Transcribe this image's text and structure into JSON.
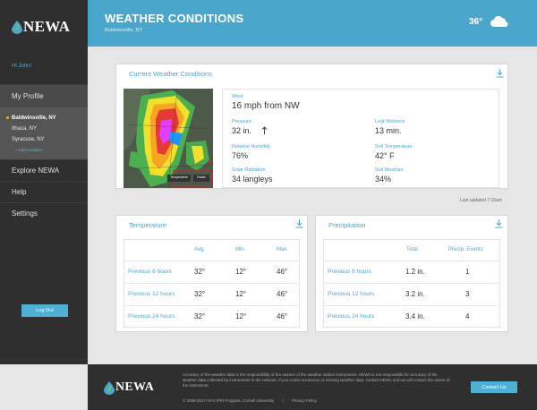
{
  "brand": {
    "logo_text": "NEWA"
  },
  "sidebar": {
    "greeting": "Hi John!",
    "my_profile": "My Profile",
    "locations": [
      {
        "label": "Baldwinsville, NY",
        "active": true
      },
      {
        "label": "Ithaca, NY",
        "active": false
      },
      {
        "label": "Syracuse, NY",
        "active": false
      }
    ],
    "add_location": "+ Add Location",
    "explore": "Explore NEWA",
    "help": "Help",
    "settings": "Settings",
    "logout": "Log Out"
  },
  "header": {
    "title": "WEATHER CONDITIONS",
    "subtitle": "Baldwinsville, NY",
    "temp": "36°",
    "weather_icon": "cloud-icon"
  },
  "current": {
    "title": "Current Weather Conditions",
    "radar_marker": "8",
    "radar_buttons": [
      "Temperature",
      "Radar"
    ],
    "wind_label": "Wind",
    "wind_value": "16 mph from NW",
    "pressure_label": "Pressure",
    "pressure_value": "32 in.",
    "pressure_trend_icon": "arrow-up-icon",
    "leaf_label": "Leaf Wetness",
    "leaf_value": "13 min.",
    "rh_label": "Relative Humidity",
    "rh_value": "76%",
    "soilt_label": "Soil Temperature",
    "soilt_value": "42° F",
    "solar_label": "Solar Radiation",
    "solar_value": "34 langleys",
    "soilm_label": "Soil Moisture",
    "soilm_value": "34%",
    "updated": "Last updated 7:15am"
  },
  "temperature": {
    "title": "Temperature",
    "headers": [
      "Avg.",
      "Min.",
      "Max."
    ],
    "rows": [
      {
        "label": "Previous 6 hours",
        "avg": "32°",
        "min": "12°",
        "max": "46°"
      },
      {
        "label": "Previous 12 hours",
        "avg": "32°",
        "min": "12°",
        "max": "46°"
      },
      {
        "label": "Previous 24 hours",
        "avg": "32°",
        "min": "12°",
        "max": "46°"
      }
    ]
  },
  "precipitation": {
    "title": "Precipitation",
    "headers": [
      "Total",
      "Precip. Events"
    ],
    "rows": [
      {
        "label": "Previous 6 hours",
        "total": "1.2 in.",
        "events": "1"
      },
      {
        "label": "Previous 12 hours",
        "total": "3.2 in.",
        "events": "3"
      },
      {
        "label": "Previous 24 hours",
        "total": "3.4 in.",
        "events": "4"
      }
    ]
  },
  "footer": {
    "disclaimer": "Accuracy of the weather data is the responsibility of the owners of the weather station instruments. NEWA is not responsible for accuracy of the weather data collected by instruments in the network. If you notice erroneous or missing weather data, contact NEWA and we will contact the owner of the instrument.",
    "copyright": "© 2009-2017 NYS IPM Program, Cornell University",
    "separator": "|",
    "privacy": "Privacy Policy",
    "contact": "Contact Us"
  },
  "colors": {
    "accent": "#4aa6cc",
    "sidebar": "#2f2f2f",
    "button": "#4fb0d6"
  }
}
